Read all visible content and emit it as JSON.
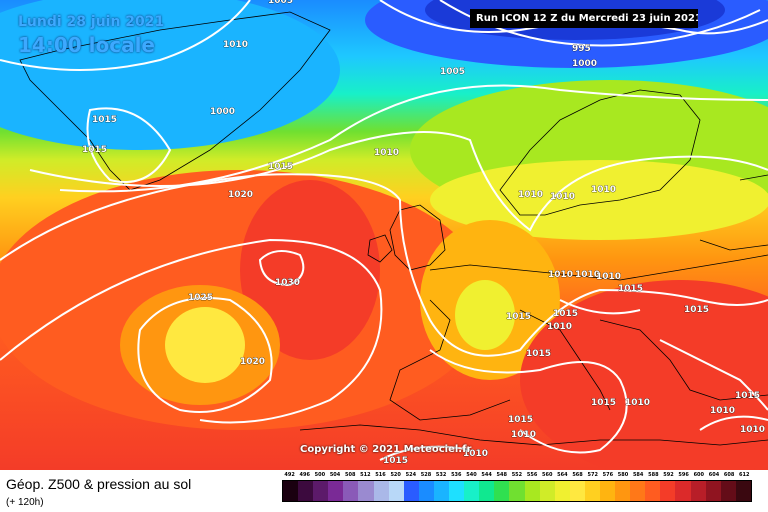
{
  "header": {
    "date": "Lundi 28 juin 2021",
    "local_time": "14:00 locale",
    "run_info": "Run ICON 12 Z du Mercredi 23 juin 2021"
  },
  "copyright": "Copyright © 2021 Meteociel.fr",
  "footer": {
    "title": "Géop. Z500 & pression au sol",
    "subtitle": "(+ 120h)"
  },
  "legend": {
    "values": [
      "492",
      "496",
      "500",
      "504",
      "508",
      "512",
      "516",
      "520",
      "524",
      "528",
      "532",
      "536",
      "540",
      "544",
      "548",
      "552",
      "556",
      "560",
      "564",
      "568",
      "572",
      "576",
      "580",
      "584",
      "588",
      "592",
      "596",
      "600",
      "604",
      "608",
      "612"
    ],
    "colors": [
      "#1a0010",
      "#3c0a3e",
      "#5c1a6a",
      "#7a2a96",
      "#8a5ab8",
      "#9a8ad0",
      "#aab8e8",
      "#b8d8f8",
      "#2a5cff",
      "#1a8cff",
      "#1ab4ff",
      "#1ee0ff",
      "#18f0c8",
      "#10e890",
      "#30e050",
      "#70e030",
      "#a8e820",
      "#d0ec28",
      "#f0f030",
      "#ffe840",
      "#ffd020",
      "#ffb410",
      "#ff9610",
      "#ff7818",
      "#ff5c20",
      "#f43c28",
      "#dc2a2a",
      "#b81e28",
      "#901420",
      "#640c18",
      "#3a0810"
    ]
  },
  "isobars": [
    {
      "value": "1005",
      "map": "top-center"
    },
    {
      "value": "1010",
      "map": "greenland-south"
    },
    {
      "value": "1000",
      "map": "greenland"
    },
    {
      "value": "1015",
      "map": "greenland-west"
    },
    {
      "value": "1015",
      "map": "greenland-west-2"
    },
    {
      "value": "995",
      "map": "low-north"
    },
    {
      "value": "1000",
      "map": "low-north-2"
    },
    {
      "value": "1005",
      "map": "top-left"
    },
    {
      "value": "1015",
      "map": "atlantic-north"
    },
    {
      "value": "1010",
      "map": "north-sea"
    },
    {
      "value": "1020",
      "map": "atlantic"
    },
    {
      "value": "1010",
      "map": "scandinavia-1"
    },
    {
      "value": "1010",
      "map": "scandinavia-2"
    },
    {
      "value": "1010",
      "map": "baltic"
    },
    {
      "value": "1030",
      "map": "azores-high"
    },
    {
      "value": "1025",
      "map": "atlantic-south"
    },
    {
      "value": "1020",
      "map": "atlantic-south-2"
    },
    {
      "value": "1010",
      "map": "central-europe-1"
    },
    {
      "value": "1010",
      "map": "central-europe-2"
    },
    {
      "value": "1010",
      "map": "central-europe-3"
    },
    {
      "value": "1015",
      "map": "france"
    },
    {
      "value": "1015",
      "map": "alps"
    },
    {
      "value": "1010",
      "map": "italy"
    },
    {
      "value": "1015",
      "map": "balkans"
    },
    {
      "value": "1015",
      "map": "east"
    },
    {
      "value": "1015",
      "map": "mediterranean"
    },
    {
      "value": "1015",
      "map": "north-africa"
    },
    {
      "value": "1010",
      "map": "north-africa-2"
    },
    {
      "value": "1015",
      "map": "spain"
    },
    {
      "value": "1010",
      "map": "sahara"
    },
    {
      "value": "1010",
      "map": "east-med"
    },
    {
      "value": "1015",
      "map": "east-med-2"
    },
    {
      "value": "1010",
      "map": "turkey"
    },
    {
      "value": "1015",
      "map": "turkey-2"
    },
    {
      "value": "1010",
      "map": "middle-east"
    }
  ]
}
